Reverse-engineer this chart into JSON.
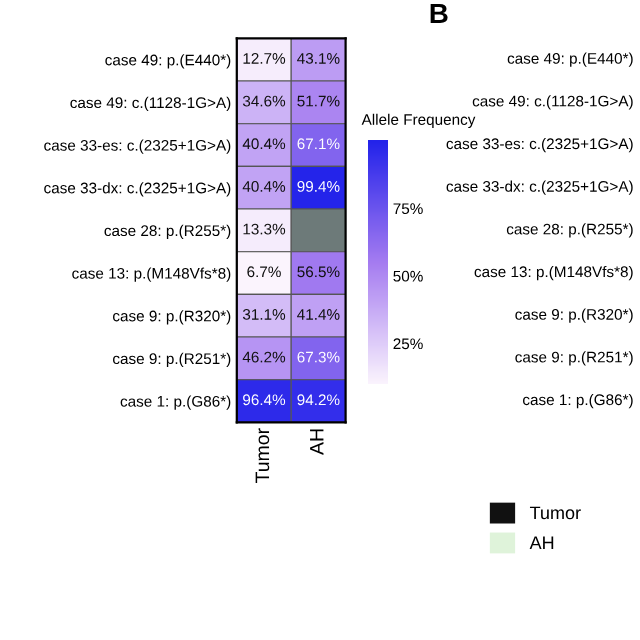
{
  "chart_data": [
    {
      "type": "heatmap",
      "categories": [
        "Tumor",
        "AH"
      ],
      "y_categories": [
        "case 49: p.(E440*)",
        "case 49: c.(1128-1G>A)",
        "case 33-es: c.(2325+1G>A)",
        "case 33-dx: c.(2325+1G>A)",
        "case 28: p.(R255*)",
        "case 13: p.(M148Vfs*8)",
        "case 9: p.(R320*)",
        "case 9: p.(R251*)",
        "case 1: p.(G86*)"
      ],
      "cells": [
        [
          12.7,
          43.1
        ],
        [
          34.6,
          51.7
        ],
        [
          40.4,
          67.1
        ],
        [
          40.4,
          99.4
        ],
        [
          13.3,
          null
        ],
        [
          6.7,
          56.5
        ],
        [
          31.1,
          41.4
        ],
        [
          46.2,
          67.3
        ],
        [
          96.4,
          94.2
        ]
      ],
      "cell_labels": [
        [
          "12.7%",
          "43.1%"
        ],
        [
          "34.6%",
          "51.7%"
        ],
        [
          "40.4%",
          "67.1%"
        ],
        [
          "40.4%",
          "99.4%"
        ],
        [
          "13.3%",
          null
        ],
        [
          "6.7%",
          "56.5%"
        ],
        [
          "31.1%",
          "41.4%"
        ],
        [
          "46.2%",
          "67.3%"
        ],
        [
          "96.4%",
          "94.2%"
        ]
      ],
      "clabel": "Allele Frequency",
      "clim": [
        10,
        100
      ],
      "cticks": [
        {
          "value": 25,
          "label": "25%"
        },
        {
          "value": 50,
          "label": "50%"
        },
        {
          "value": 75,
          "label": "75%"
        }
      ]
    },
    {
      "type": "other",
      "title": "B",
      "annotations": [
        "case 49: p.(E440*)",
        "case 49: c.(1128-1G>A)",
        "case 33-es: c.(2325+1G>A)",
        "case 33-dx: c.(2325+1G>A)",
        "case 28: p.(R255*)",
        "case 13: p.(M148Vfs*8)",
        "case 9: p.(R320*)",
        "case 9: p.(R251*)",
        "case 1: p.(G86*)"
      ],
      "series": [
        {
          "name": "Tumor",
          "color": "#111111"
        },
        {
          "name": "AH",
          "color": "#dff3da"
        }
      ]
    }
  ]
}
